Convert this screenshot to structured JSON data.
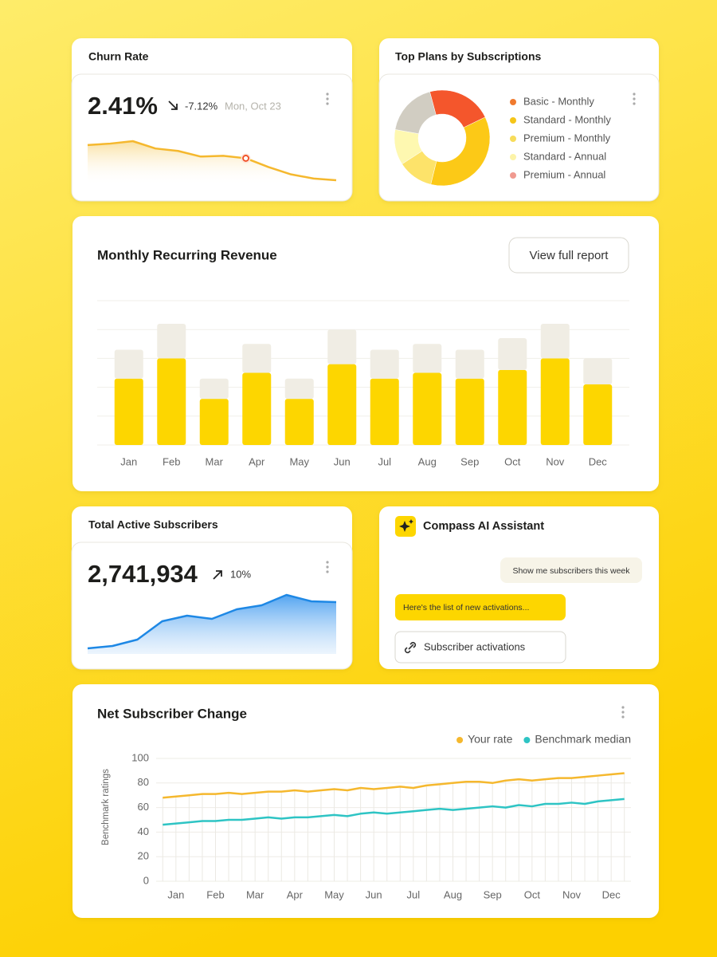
{
  "cards": {
    "churn_value": "2.41%",
    "churn_change": "-7.12%",
    "churn_date": "Mon, Oct 23",
    "mrr_button": "View full report",
    "subscribers_value": "2,741,934",
    "subscribers_change": "10%",
    "assistant_title": "Compass AI Assistant",
    "assistant_user_message": "Show me subscribers this week",
    "assistant_reply": "Here's the list of new activations...",
    "assistant_link": "Subscriber activations"
  },
  "chart_data": [
    {
      "type": "line",
      "title": "Churn Rate",
      "color": "#f5b82e",
      "marker_index": 7,
      "values": [
        2.57,
        2.63,
        2.73,
        2.43,
        2.33,
        2.1,
        2.13,
        2.03,
        1.67,
        1.37,
        1.2,
        1.13
      ]
    },
    {
      "type": "pie",
      "title": "Top Plans by Subscriptions",
      "categories": [
        "Basic - Monthly",
        "Standard - Monthly",
        "Premium - Monthly",
        "Standard - Annual",
        "Premium - Annual"
      ],
      "values": [
        22,
        36,
        12,
        12,
        18
      ],
      "colors": [
        "#f4562c",
        "#fcc917",
        "#fde36a",
        "#fef8b0",
        "#d1cdc2"
      ],
      "legend_colors": [
        "#f07a2e",
        "#f5c518",
        "#f7dc5a",
        "#fcf3a8",
        "#f09a90"
      ]
    },
    {
      "type": "bar",
      "title": "Monthly Recurring Revenue",
      "stacked": true,
      "categories": [
        "Jan",
        "Feb",
        "Mar",
        "Apr",
        "May",
        "Jun",
        "Jul",
        "Aug",
        "Sep",
        "Oct",
        "Nov",
        "Dec"
      ],
      "series": [
        {
          "color": "#fdd600",
          "values": [
            2.3,
            3.0,
            1.6,
            2.5,
            1.6,
            2.8,
            2.3,
            2.5,
            2.3,
            2.6,
            3.0,
            2.1
          ]
        },
        {
          "color": "#f0ede4",
          "values": [
            1.0,
            1.2,
            0.7,
            1.0,
            0.7,
            1.2,
            1.0,
            1.0,
            1.0,
            1.1,
            1.2,
            0.9
          ]
        }
      ],
      "ylim": [
        0,
        5
      ],
      "yticks": [
        0,
        1,
        2,
        3,
        4,
        5
      ],
      "grid": true
    },
    {
      "type": "line",
      "title": "Total Active Subscribers",
      "color": "#1e88e5",
      "values": [
        17,
        20,
        28,
        51,
        58,
        54,
        66,
        71,
        84,
        76,
        75
      ]
    },
    {
      "type": "line",
      "title": "Net Subscriber Change",
      "ylabel": "Benchmark ratings",
      "categories": [
        null,
        "Jan",
        null,
        null,
        "Feb",
        null,
        null,
        "Mar",
        null,
        null,
        "Apr",
        null,
        null,
        "May",
        null,
        null,
        "Jun",
        null,
        null,
        "Jul",
        null,
        null,
        "Aug",
        null,
        null,
        "Sep",
        null,
        null,
        "Oct",
        null,
        null,
        "Nov",
        null,
        null,
        "Dec",
        null
      ],
      "series": [
        {
          "name": "Your rate",
          "color": "#f5b82e",
          "values": [
            68,
            69,
            70,
            71,
            71,
            72,
            71,
            72,
            73,
            73,
            74,
            73,
            74,
            75,
            74,
            76,
            75,
            76,
            77,
            76,
            78,
            79,
            80,
            81,
            81,
            80,
            82,
            83,
            82,
            83,
            84,
            84,
            85,
            86,
            87,
            88
          ]
        },
        {
          "name": "Benchmark median",
          "color": "#2ec4c4",
          "values": [
            46,
            47,
            48,
            49,
            49,
            50,
            50,
            51,
            52,
            51,
            52,
            52,
            53,
            54,
            53,
            55,
            56,
            55,
            56,
            57,
            58,
            59,
            58,
            59,
            60,
            61,
            60,
            62,
            61,
            63,
            63,
            64,
            63,
            65,
            66,
            67
          ]
        }
      ],
      "ylim": [
        0,
        100
      ],
      "yticks": [
        0,
        20,
        40,
        60,
        80,
        100
      ],
      "grid": true,
      "legend": "top-right"
    }
  ]
}
